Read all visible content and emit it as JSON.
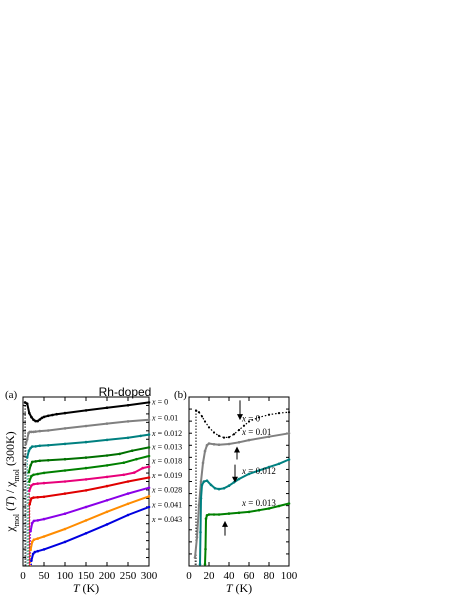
{
  "chart_data": [
    {
      "panel_label": "(a)",
      "type": "line",
      "title": "Rh-doped",
      "xlabel_italic": "T",
      "xlabel_unit": "(K)",
      "ylabel_parts": [
        "χ",
        "mol",
        " (",
        "T",
        ") / χ",
        "mol",
        " (300K)"
      ],
      "xlim": [
        0,
        300
      ],
      "xticks": [
        "0",
        "50",
        "100",
        "150",
        "200",
        "250",
        "300"
      ],
      "series": [
        {
          "name": "x = 0",
          "color": "#000000",
          "dotted": false,
          "x": [
            5,
            10,
            15,
            20,
            25,
            30,
            35,
            40,
            45,
            50,
            60,
            70,
            80,
            100,
            150,
            200,
            250,
            300
          ],
          "y": [
            10.0,
            9.95,
            9.6,
            9.45,
            9.35,
            9.3,
            9.3,
            9.36,
            9.42,
            9.46,
            9.5,
            9.53,
            9.56,
            9.6,
            9.7,
            9.8,
            9.89,
            10.0
          ]
        },
        {
          "name": "x = 0.01",
          "color": "#808080",
          "dotted": false,
          "x": [
            7,
            10,
            13,
            16,
            20,
            25,
            30,
            40,
            60,
            100,
            150,
            200,
            250,
            300
          ],
          "y": [
            8.45,
            8.62,
            8.85,
            8.9,
            8.9,
            8.9,
            8.91,
            8.93,
            8.95,
            9.03,
            9.12,
            9.21,
            9.29,
            9.35
          ]
        },
        {
          "name": "x = 0.012",
          "color": "#008080",
          "dotted": false,
          "x": [
            10,
            14,
            18,
            22,
            30,
            40,
            60,
            100,
            150,
            200,
            250,
            280,
            300
          ],
          "y": [
            7.95,
            8.2,
            8.3,
            8.35,
            8.36,
            8.38,
            8.4,
            8.45,
            8.52,
            8.6,
            8.68,
            8.75,
            8.8
          ]
        },
        {
          "name": "x = 0.013",
          "color": "#007000",
          "dotted": false,
          "x": [
            14,
            18,
            22,
            30,
            40,
            60,
            100,
            150,
            200,
            230,
            260,
            300
          ],
          "y": [
            7.4,
            7.65,
            7.78,
            7.8,
            7.82,
            7.84,
            7.88,
            7.94,
            8.02,
            8.08,
            8.2,
            8.32
          ]
        },
        {
          "name": "x = 0.018",
          "color": "#008000",
          "dotted": false,
          "x": [
            15,
            20,
            25,
            35,
            50,
            100,
            150,
            200,
            240,
            270,
            300
          ],
          "y": [
            7.05,
            7.25,
            7.3,
            7.33,
            7.37,
            7.46,
            7.55,
            7.65,
            7.75,
            7.88,
            8.0
          ]
        },
        {
          "name": "x = 0.019",
          "color": "#e8007a",
          "dotted": false,
          "x": [
            15,
            20,
            25,
            35,
            50,
            100,
            150,
            200,
            240,
            265,
            285,
            300
          ],
          "y": [
            6.7,
            6.9,
            6.95,
            6.97,
            6.99,
            7.05,
            7.13,
            7.22,
            7.3,
            7.38,
            7.55,
            7.6
          ]
        },
        {
          "name": "x = 0.028",
          "color": "#e00000",
          "dotted": false,
          "x": [
            16,
            20,
            25,
            35,
            50,
            100,
            150,
            200,
            250,
            300
          ],
          "y": [
            6.2,
            6.42,
            6.45,
            6.46,
            6.48,
            6.6,
            6.72,
            6.88,
            7.05,
            7.2
          ]
        },
        {
          "name": "x = 0.041",
          "color": "#8a00e8",
          "dotted": false,
          "x": [
            18,
            22,
            26,
            35,
            50,
            100,
            150,
            200,
            250,
            300
          ],
          "y": [
            5.2,
            5.5,
            5.58,
            5.6,
            5.65,
            5.85,
            6.1,
            6.35,
            6.6,
            6.82
          ]
        },
        {
          "name": "x = 0.043",
          "color": "#ff8c00",
          "dotted": false,
          "x": [
            18,
            22,
            26,
            35,
            50,
            100,
            150,
            200,
            250,
            300
          ],
          "y": [
            4.5,
            4.8,
            4.88,
            4.92,
            5.0,
            5.28,
            5.6,
            5.92,
            6.22,
            6.5
          ]
        },
        {
          "name": "",
          "color": "#0000e0",
          "dotted": false,
          "x": [
            20,
            24,
            28,
            35,
            50,
            100,
            150,
            200,
            250,
            300
          ],
          "y": [
            4.1,
            4.35,
            4.42,
            4.45,
            4.52,
            4.8,
            5.12,
            5.45,
            5.8,
            6.1
          ]
        }
      ],
      "series_labels": [
        {
          "text": "x = 0",
          "y": 10.03
        },
        {
          "text": "x = 0.01",
          "y": 9.43
        },
        {
          "text": "x = 0.012",
          "y": 8.86
        },
        {
          "text": "x = 0.013",
          "y": 8.35
        },
        {
          "text": "x = 0.018",
          "y": 7.83
        },
        {
          "text": "x = 0.019",
          "y": 7.3
        },
        {
          "text": "x = 0.028",
          "y": 6.76
        },
        {
          "text": "x = 0.041",
          "y": 6.2
        },
        {
          "text": "x = 0.043",
          "y": 5.66
        }
      ],
      "ylim": [
        3.9,
        10.2
      ],
      "grid": false
    },
    {
      "panel_label": "(b)",
      "type": "line",
      "xlabel_italic": "T",
      "xlabel_unit": "(K)",
      "xlim": [
        0,
        100
      ],
      "xticks": [
        "0",
        "20",
        "40",
        "60",
        "80",
        "100"
      ],
      "ylim": [
        0,
        10
      ],
      "grid": false,
      "series": [
        {
          "name": "x = 0",
          "color": "#000000",
          "dotted": true,
          "x": [
            7,
            10,
            13,
            16,
            20,
            25,
            30,
            35,
            40,
            45,
            50,
            55,
            60,
            70,
            80,
            90,
            100
          ],
          "y": [
            9.2,
            9.1,
            8.85,
            8.55,
            8.2,
            7.9,
            7.7,
            7.6,
            7.62,
            7.8,
            8.05,
            8.3,
            8.55,
            8.8,
            8.95,
            9.05,
            9.1
          ]
        },
        {
          "name": "x = 0.01",
          "color": "#808080",
          "dotted": false,
          "x": [
            6,
            8,
            10,
            12,
            14,
            16,
            18,
            20,
            25,
            30,
            40,
            50,
            60,
            80,
            100
          ],
          "y": [
            0.5,
            1.7,
            3.6,
            5.0,
            6.1,
            6.8,
            7.15,
            7.25,
            7.2,
            7.18,
            7.22,
            7.32,
            7.45,
            7.65,
            7.85
          ]
        },
        {
          "name": "x = 0.012",
          "color": "#008080",
          "dotted": false,
          "x": [
            11,
            11.5,
            12,
            13,
            15,
            18,
            22,
            26,
            30,
            35,
            40,
            45,
            50,
            60,
            70,
            80,
            90,
            100
          ],
          "y": [
            0.1,
            2.0,
            4.0,
            4.8,
            5.0,
            5.05,
            4.8,
            4.6,
            4.55,
            4.6,
            4.75,
            4.95,
            5.15,
            5.45,
            5.65,
            5.85,
            6.05,
            6.3
          ]
        },
        {
          "name": "x = 0.013",
          "color": "#008000",
          "dotted": false,
          "x": [
            16,
            16.5,
            17,
            18,
            20,
            25,
            30,
            40,
            50,
            60,
            70,
            80,
            90,
            100
          ],
          "y": [
            0.1,
            1.0,
            2.8,
            3.0,
            3.05,
            3.05,
            3.05,
            3.1,
            3.15,
            3.2,
            3.3,
            3.4,
            3.55,
            3.7
          ]
        }
      ],
      "series_labels": [
        {
          "text": "x = 0",
          "x": 53,
          "y": 8.55
        },
        {
          "text": "x = 0.01",
          "x": 53,
          "y": 7.75
        },
        {
          "text": "x = 0.012",
          "x": 53,
          "y": 5.45
        },
        {
          "text": "x = 0.013",
          "x": 53,
          "y": 3.55
        }
      ],
      "arrows": [
        {
          "x": 51,
          "y_from": 9.8,
          "y_to": 8.7
        },
        {
          "x": 48,
          "y_from": 6.3,
          "y_to": 7.0
        },
        {
          "x": 46,
          "y_from": 6.0,
          "y_to": 5.0
        },
        {
          "x": 36,
          "y_from": 1.8,
          "y_to": 2.6
        }
      ]
    }
  ]
}
